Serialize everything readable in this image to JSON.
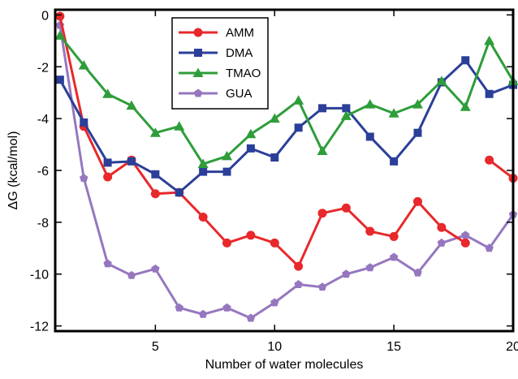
{
  "chart_data": {
    "type": "line",
    "xlabel": "Number of water molecules",
    "ylabel": "ΔG (kcal/mol)",
    "xlim": [
      0.8,
      20
    ],
    "ylim": [
      -12.2,
      0.2
    ],
    "x_ticks": [
      5,
      10,
      15,
      20
    ],
    "x_tick_labels": [
      "5",
      "10",
      "15",
      "20"
    ],
    "y_ticks": [
      0,
      -2,
      -4,
      -6,
      -8,
      -10,
      -12
    ],
    "y_tick_labels": [
      "0",
      "-2",
      "-4",
      "-6",
      "-8",
      "-10",
      "-12"
    ],
    "grid": false,
    "legend_position": "top-center",
    "x": [
      1,
      2,
      3,
      4,
      5,
      6,
      7,
      8,
      9,
      10,
      11,
      12,
      13,
      14,
      15,
      16,
      17,
      18,
      19,
      20
    ],
    "series": [
      {
        "name": "AMM",
        "color": "#e8282b",
        "marker": "circle",
        "x": [
          1,
          2,
          3,
          4,
          5,
          6,
          7,
          8,
          9,
          10,
          11,
          12,
          13,
          14,
          15,
          16,
          17,
          18
        ],
        "values": [
          -0.05,
          -4.3,
          -6.25,
          -5.6,
          -6.9,
          -6.85,
          -7.8,
          -8.8,
          -8.5,
          -8.8,
          -9.7,
          -7.65,
          -7.45,
          -8.35,
          -8.55,
          -7.2,
          -8.2,
          -8.8
        ]
      },
      {
        "name": "AMM",
        "color": "#e8282b",
        "marker": "circle",
        "x": [
          19,
          20
        ],
        "values": [
          -5.6,
          -6.3
        ]
      },
      {
        "name": "DMA",
        "color": "#2b3f98",
        "marker": "square",
        "values": [
          -2.5,
          -4.15,
          -5.7,
          -5.65,
          -6.15,
          -6.85,
          -6.05,
          -6.05,
          -5.15,
          -5.5,
          -4.35,
          -3.6,
          -3.6,
          -4.7,
          -5.65,
          -4.55,
          -2.6,
          -1.75,
          -3.05,
          -2.7
        ]
      },
      {
        "name": "TMAO",
        "color": "#2e9d3a",
        "marker": "triangle",
        "values": [
          -0.8,
          -1.95,
          -3.05,
          -3.5,
          -4.55,
          -4.3,
          -5.75,
          -5.45,
          -4.6,
          -4.0,
          -3.3,
          -5.25,
          -3.9,
          -3.45,
          -3.8,
          -3.45,
          -2.55,
          -3.55,
          -1.0,
          -2.55
        ]
      },
      {
        "name": "GUA",
        "color": "#9677bf",
        "marker": "pentagon",
        "values": [
          -0.4,
          -6.3,
          -9.6,
          -10.05,
          -9.8,
          -11.3,
          -11.55,
          -11.3,
          -11.7,
          -11.1,
          -10.4,
          -10.5,
          -10.0,
          -9.75,
          -9.35,
          -9.95,
          -8.8,
          -8.5,
          -9.0,
          -7.7
        ]
      }
    ],
    "legend": [
      {
        "label": "AMM",
        "color": "#e8282b",
        "marker": "circle"
      },
      {
        "label": "DMA",
        "color": "#2b3f98",
        "marker": "square"
      },
      {
        "label": "TMAO",
        "color": "#2e9d3a",
        "marker": "triangle"
      },
      {
        "label": "GUA",
        "color": "#9677bf",
        "marker": "pentagon"
      }
    ]
  }
}
